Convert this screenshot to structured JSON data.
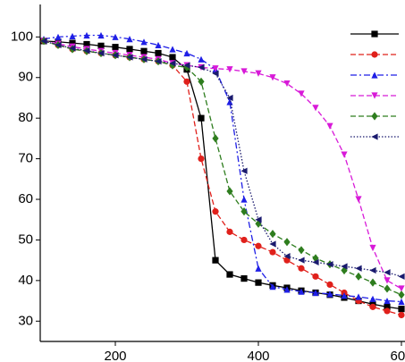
{
  "chart_data": {
    "type": "line",
    "x": [
      100,
      120,
      140,
      160,
      180,
      200,
      220,
      240,
      260,
      280,
      300,
      320,
      340,
      360,
      380,
      400,
      420,
      440,
      460,
      480,
      500,
      520,
      540,
      560,
      580,
      600
    ],
    "xlim": [
      95,
      605
    ],
    "ylim": [
      25,
      108
    ],
    "xticks": [
      200,
      400,
      600
    ],
    "yticks": [
      30,
      40,
      50,
      60,
      70,
      80,
      90,
      100
    ],
    "series": [
      {
        "color": "#000000",
        "marker": "square",
        "dash": "solid",
        "values": [
          99,
          98.8,
          98.5,
          98.2,
          97.8,
          97.5,
          97,
          96.5,
          96,
          95,
          92,
          80,
          45,
          41.5,
          40.5,
          39.5,
          38.8,
          38.2,
          37.5,
          37,
          36.5,
          35.8,
          35,
          34.2,
          33.5,
          33
        ]
      },
      {
        "color": "#e0201b",
        "marker": "circle",
        "dash": "dashed",
        "values": [
          99,
          98,
          97,
          96.5,
          96,
          95.5,
          95,
          94.5,
          94,
          93,
          89,
          70,
          57,
          52,
          50,
          48.5,
          47,
          45,
          43,
          41,
          39,
          37,
          35,
          33.5,
          32.5,
          31.5
        ]
      },
      {
        "color": "#1f1fe6",
        "marker": "triangle-up",
        "dash": "dashdot",
        "values": [
          99.5,
          100,
          100.2,
          100.4,
          100.4,
          100,
          99.5,
          98.8,
          98,
          97,
          96,
          94.5,
          92,
          84,
          60,
          43,
          38.5,
          37.8,
          37.3,
          37,
          36.7,
          36.3,
          36,
          35.5,
          35,
          34.8
        ]
      },
      {
        "color": "#d81ad8",
        "marker": "triangle-down",
        "dash": "dashed",
        "values": [
          99,
          98.3,
          97.6,
          97,
          96.5,
          96,
          95.5,
          95,
          94.5,
          93.5,
          93,
          92.5,
          92.2,
          92,
          91.5,
          91,
          90,
          88.5,
          86,
          82.5,
          78,
          71,
          60,
          48,
          40,
          38
        ]
      },
      {
        "color": "#2e7d1e",
        "marker": "diamond",
        "dash": "dashed",
        "values": [
          99,
          98,
          97,
          96.5,
          96,
          95.5,
          95,
          94.5,
          94,
          93,
          92.5,
          89,
          75,
          62,
          57,
          54,
          51.5,
          49.5,
          47.5,
          45.5,
          44,
          42.5,
          41,
          39.5,
          38,
          36.5
        ]
      },
      {
        "color": "#1a1a6e",
        "marker": "triangle-left",
        "dash": "dotted",
        "values": [
          99,
          98,
          97.2,
          96.6,
          96,
          95.5,
          95,
          94.5,
          94,
          93.5,
          93,
          92.5,
          91,
          85,
          67,
          55,
          49,
          46,
          45,
          44.5,
          44,
          43.5,
          43,
          42.5,
          42,
          41
        ]
      }
    ]
  }
}
